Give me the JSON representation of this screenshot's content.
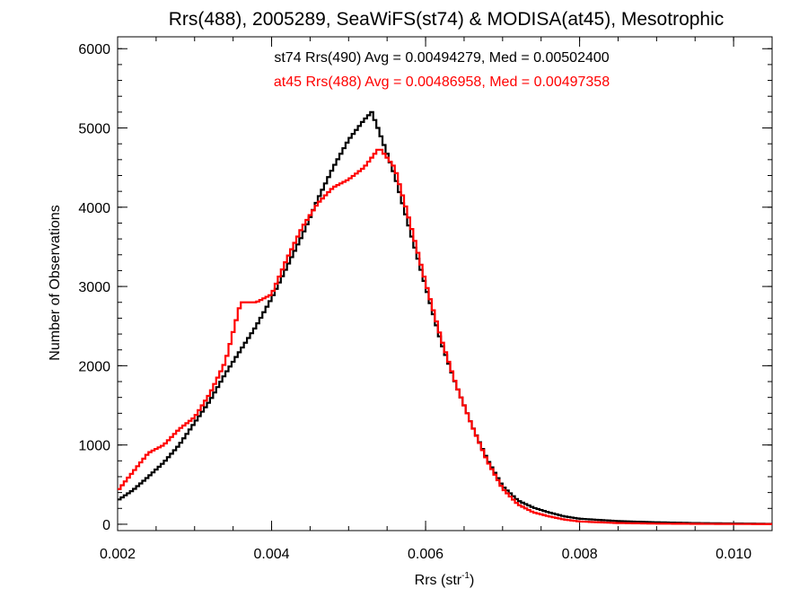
{
  "chart_data": {
    "type": "line",
    "title": "Rrs(488), 2005289, SeaWiFS(st74) & MODISA(at45), Mesotrophic",
    "xlabel": "Rrs (str",
    "xlabel_superscript": "-1",
    "xlabel_suffix": ")",
    "ylabel": "Number of Observations",
    "xlim": [
      0.002,
      0.0105
    ],
    "ylim": [
      -80,
      6150
    ],
    "x_ticks": [
      0.002,
      0.004,
      0.006,
      0.008,
      0.01
    ],
    "x_tick_labels": [
      "0.002",
      "0.004",
      "0.006",
      "0.008",
      "0.010"
    ],
    "y_ticks": [
      0,
      1000,
      2000,
      3000,
      4000,
      5000,
      6000
    ],
    "y_tick_labels": [
      "0",
      "1000",
      "2000",
      "3000",
      "4000",
      "5000",
      "6000"
    ],
    "grid": false,
    "legend": "none",
    "annotations": [
      {
        "text": "st74 Rrs(490) Avg = 0.00494279, Med = 0.00502400",
        "color": "#000000"
      },
      {
        "text": "at45 Rrs(488) Avg = 0.00486958, Med = 0.00497358",
        "color": "#ff0000"
      }
    ],
    "series": [
      {
        "color": "#000000",
        "x": [
          0.002,
          0.0022,
          0.0024,
          0.0026,
          0.0028,
          0.003,
          0.0032,
          0.0034,
          0.0036,
          0.0038,
          0.004,
          0.0042,
          0.0044,
          0.0046,
          0.0048,
          0.005,
          0.0052,
          0.0053,
          0.0054,
          0.0056,
          0.0058,
          0.006,
          0.0062,
          0.0064,
          0.0066,
          0.0068,
          0.007,
          0.0072,
          0.0074,
          0.0076,
          0.0078,
          0.008,
          0.0085,
          0.009,
          0.0095,
          0.01,
          0.0105
        ],
        "values": [
          300,
          430,
          600,
          780,
          1000,
          1280,
          1560,
          1900,
          2200,
          2500,
          2850,
          3250,
          3650,
          4100,
          4500,
          4850,
          5100,
          5200,
          4950,
          4400,
          3700,
          3000,
          2300,
          1750,
          1250,
          820,
          480,
          300,
          210,
          150,
          100,
          70,
          40,
          25,
          15,
          10,
          5
        ]
      },
      {
        "color": "#ff0000",
        "x": [
          0.002,
          0.0022,
          0.0024,
          0.0026,
          0.0028,
          0.003,
          0.0032,
          0.0034,
          0.0036,
          0.0038,
          0.004,
          0.0042,
          0.0044,
          0.0046,
          0.0048,
          0.005,
          0.0052,
          0.0054,
          0.0056,
          0.0058,
          0.006,
          0.0062,
          0.0064,
          0.0066,
          0.0068,
          0.007,
          0.0072,
          0.0074,
          0.0076,
          0.0078,
          0.008,
          0.0085,
          0.009,
          0.0095,
          0.01,
          0.0105
        ],
        "values": [
          420,
          660,
          900,
          1000,
          1200,
          1350,
          1650,
          2050,
          2800,
          2800,
          2900,
          3350,
          3750,
          4050,
          4250,
          4350,
          4500,
          4750,
          4500,
          3800,
          3050,
          2350,
          1750,
          1250,
          800,
          450,
          250,
          150,
          100,
          60,
          35,
          15,
          8,
          5,
          3,
          2
        ]
      }
    ]
  }
}
